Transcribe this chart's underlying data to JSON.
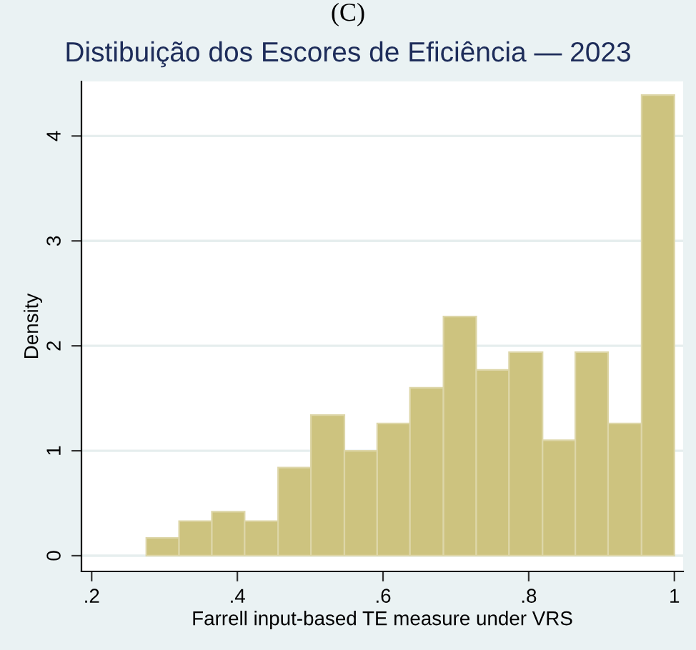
{
  "chart_data": {
    "type": "histogram",
    "title": "Distibuição dos Escores de Eficiência — 2023",
    "xlabel": "Farrell input-based TE measure under VRS",
    "ylabel": "Density",
    "annotations": [
      "(C)"
    ],
    "bins": [
      0.275,
      0.32,
      0.365,
      0.41,
      0.456,
      0.501,
      0.547,
      0.592,
      0.637,
      0.683,
      0.728,
      0.773,
      0.819,
      0.864,
      0.909,
      0.955,
      1.0
    ],
    "values": [
      0.17,
      0.33,
      0.42,
      0.33,
      0.84,
      1.34,
      1.0,
      1.26,
      1.6,
      2.28,
      1.77,
      1.94,
      1.1,
      1.94,
      1.26,
      4.39
    ],
    "color": "#cdc37f",
    "xlim": [
      0.186,
      1.012
    ],
    "ylim": [
      -0.15,
      4.52
    ],
    "xticks": [
      {
        "value": 0.2,
        "label": ".2"
      },
      {
        "value": 0.4,
        "label": ".4"
      },
      {
        "value": 0.6,
        "label": ".6"
      },
      {
        "value": 0.8,
        "label": ".8"
      },
      1
    ],
    "yticks": [
      0,
      1,
      2,
      3,
      4
    ],
    "grid": "y",
    "legend": false
  }
}
